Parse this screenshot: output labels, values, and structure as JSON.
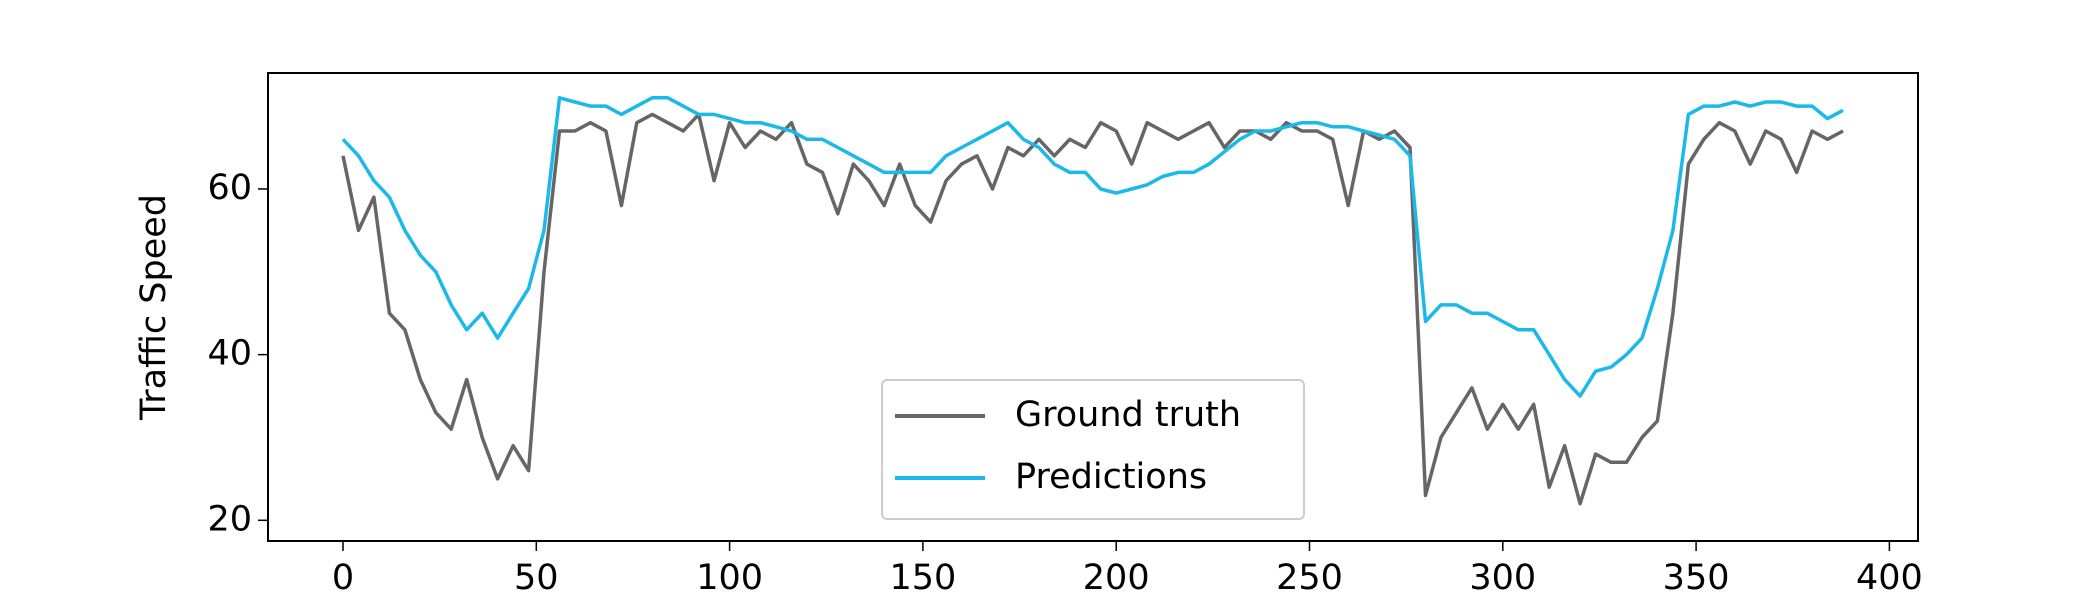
{
  "chart_data": {
    "type": "line",
    "ylabel": "Traffic Speed",
    "x": [
      0,
      4,
      8,
      12,
      16,
      20,
      24,
      28,
      32,
      36,
      40,
      44,
      48,
      52,
      56,
      60,
      64,
      68,
      72,
      76,
      80,
      84,
      88,
      92,
      96,
      100,
      104,
      108,
      112,
      116,
      120,
      124,
      128,
      132,
      136,
      140,
      144,
      148,
      152,
      156,
      160,
      164,
      168,
      172,
      176,
      180,
      184,
      188,
      192,
      196,
      200,
      204,
      208,
      212,
      216,
      220,
      224,
      228,
      232,
      236,
      240,
      244,
      248,
      252,
      256,
      260,
      264,
      268,
      272,
      276,
      280,
      284,
      288,
      292,
      296,
      300,
      304,
      308,
      312,
      316,
      320,
      324,
      328,
      332,
      336,
      340,
      344,
      348,
      352,
      356,
      360,
      364,
      368,
      372,
      376,
      380,
      384,
      388
    ],
    "series": [
      {
        "name": "Ground truth",
        "color": "#666666",
        "values": [
          64,
          55,
          59,
          45,
          43,
          37,
          33,
          31,
          37,
          30,
          25,
          29,
          26,
          50,
          67,
          67,
          68,
          67,
          58,
          68,
          69,
          68,
          67,
          69,
          61,
          68,
          65,
          67,
          66,
          68,
          63,
          62,
          57,
          63,
          61,
          58,
          63,
          58,
          56,
          61,
          63,
          64,
          60,
          65,
          64,
          66,
          64,
          66,
          65,
          68,
          67,
          63,
          68,
          67,
          66,
          67,
          68,
          65,
          67,
          67,
          66,
          68,
          67,
          67,
          66,
          58,
          67,
          66,
          67,
          65,
          23,
          30,
          33,
          36,
          31,
          34,
          31,
          34,
          24,
          29,
          22,
          28,
          27,
          27,
          30,
          32,
          45,
          63,
          66,
          68,
          67,
          63,
          67,
          66,
          62,
          67,
          66,
          67
        ]
      },
      {
        "name": "Predictions",
        "color": "#1bb9ea",
        "values": [
          66,
          64,
          61,
          59,
          55,
          52,
          50,
          46,
          43,
          45,
          42,
          45,
          48,
          55,
          71,
          70.5,
          70,
          70,
          69,
          70,
          71,
          71,
          70,
          69,
          69,
          68.5,
          68,
          68,
          67.5,
          67,
          66,
          66,
          65,
          64,
          63,
          62,
          62,
          62,
          62,
          64,
          65,
          66,
          67,
          68,
          66,
          65,
          63,
          62,
          62,
          60,
          59.5,
          60,
          60.5,
          61.5,
          62,
          62,
          63,
          64.5,
          66,
          67,
          67,
          67.5,
          68,
          68,
          67.5,
          67.5,
          67,
          66.5,
          66,
          64,
          44,
          46,
          46,
          45,
          45,
          44,
          43,
          43,
          40,
          37,
          35,
          38,
          38.5,
          40,
          42,
          48,
          55,
          69,
          70,
          70,
          70.5,
          70,
          70.5,
          70.5,
          70,
          70,
          68.5,
          69.5
        ]
      }
    ],
    "xlim": [
      -19.4,
      407.4
    ],
    "ylim": [
      17.5,
      74
    ],
    "xticks": [
      0,
      50,
      100,
      150,
      200,
      250,
      300,
      350,
      400
    ],
    "yticks": [
      20,
      40,
      60
    ],
    "legend": "lower center"
  }
}
